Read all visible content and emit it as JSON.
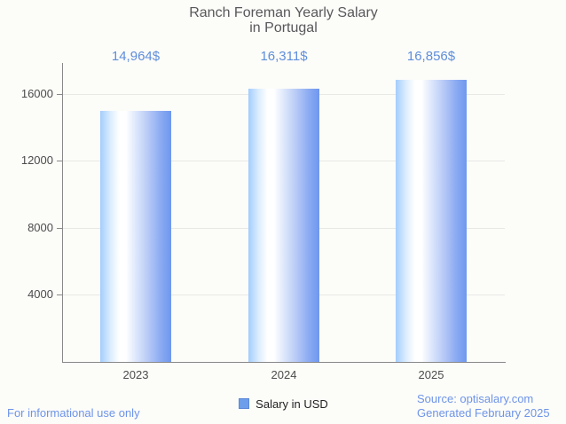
{
  "page": {
    "background": "#fcfcf9"
  },
  "chart_data": {
    "type": "bar",
    "title": "Ranch Foreman Yearly Salary in Portugal",
    "title_lines": [
      "Ranch Foreman Yearly Salary",
      "in Portugal"
    ],
    "categories": [
      "2023",
      "2024",
      "2025"
    ],
    "series": [
      {
        "name": "Salary in USD",
        "values": [
          14964,
          16311,
          16856
        ]
      }
    ],
    "value_labels": [
      "14,964$",
      "16,311$",
      "16,856$"
    ],
    "yticks": [
      4000,
      8000,
      12000,
      16000
    ],
    "ytick_labels": [
      "4000",
      "8000",
      "12000",
      "16000"
    ],
    "ylim": [
      0,
      17850
    ],
    "grid": true,
    "legend": {
      "label": "Salary in USD",
      "position": "bottom"
    },
    "xlabel": "",
    "ylabel": ""
  },
  "footer": {
    "left": "For informational use only",
    "source": "Source: optisalary.com",
    "generated": "Generated February 2025"
  },
  "colors": {
    "background": "#fcfcf9",
    "title_text": "#58585a",
    "value_label_blue": "#5f8edb",
    "footer_blue": "#6e94e8",
    "axis_line": "#888888",
    "gridline": "#e8e8e6",
    "tick_label": "#4c4c4c",
    "legend_fill": "#6d9eeb",
    "legend_border": "#5a87d7",
    "bar_gradient_left": "#a3cdfd",
    "bar_gradient_mid": "#ffffff",
    "bar_gradient_right": "#6f97ee"
  }
}
